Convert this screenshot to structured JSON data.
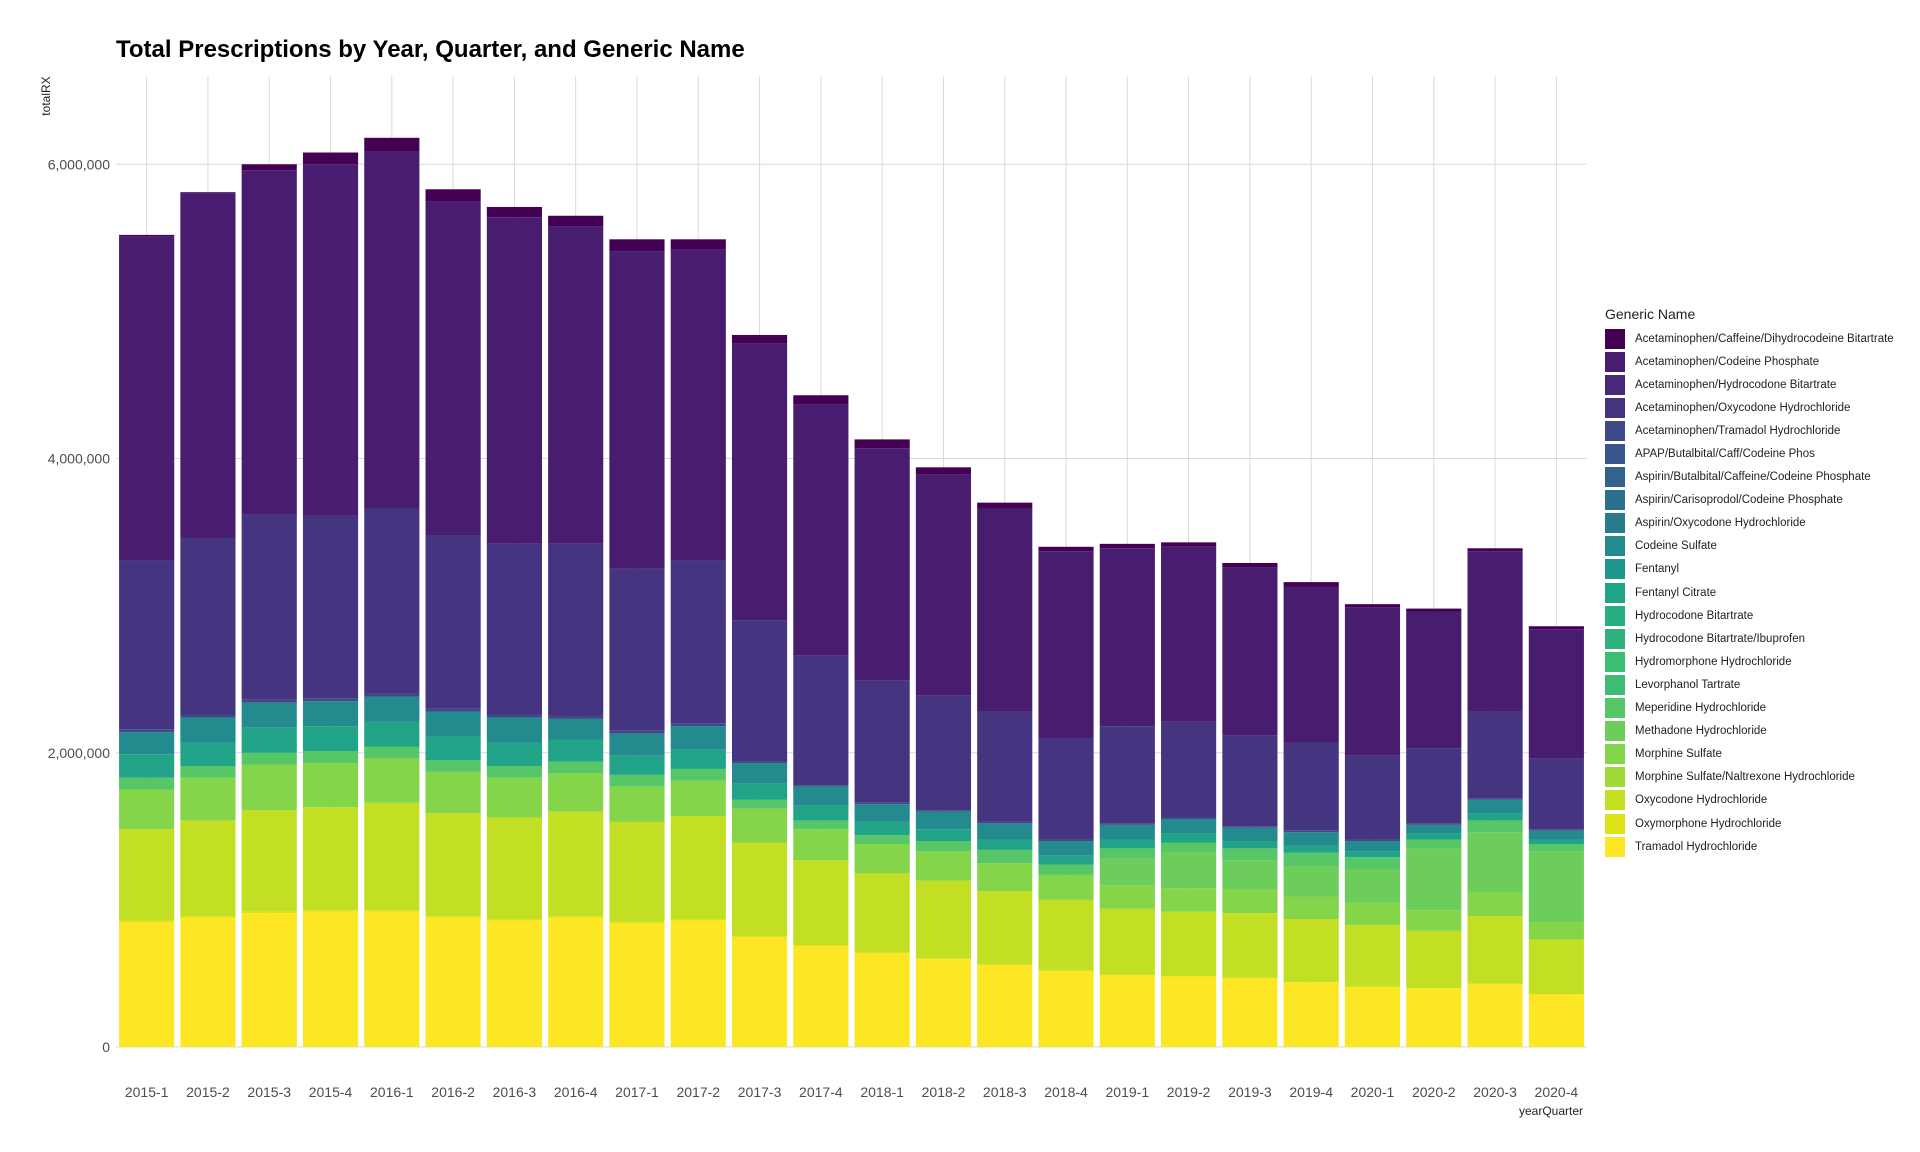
{
  "chart_data": {
    "type": "bar",
    "stacked": true,
    "title": "Total Prescriptions by Year, Quarter, and Generic Name",
    "xlabel": "yearQuarter",
    "ylabel": "totalRX",
    "ylim": [
      0,
      6600000
    ],
    "yticks": [
      0,
      2000000,
      4000000,
      6000000
    ],
    "ytick_labels": [
      "0",
      "2,000,000",
      "4,000,000",
      "6,000,000"
    ],
    "grid": true,
    "legend_title": "Generic Name",
    "legend_position": "right",
    "categories": [
      "2015-1",
      "2015-2",
      "2015-3",
      "2015-4",
      "2016-1",
      "2016-2",
      "2016-3",
      "2016-4",
      "2017-1",
      "2017-2",
      "2017-3",
      "2017-4",
      "2018-1",
      "2018-2",
      "2018-3",
      "2018-4",
      "2019-1",
      "2019-2",
      "2019-3",
      "2019-4",
      "2020-1",
      "2020-2",
      "2020-3",
      "2020-4"
    ],
    "series": [
      {
        "name": "Acetaminophen/Caffeine/Dihydrocodeine Bitartrate",
        "color": "#440154",
        "values": [
          10000,
          10000,
          40000,
          80000,
          90000,
          80000,
          70000,
          70000,
          80000,
          70000,
          60000,
          60000,
          60000,
          50000,
          40000,
          30000,
          30000,
          30000,
          30000,
          30000,
          20000,
          20000,
          20000,
          20000
        ]
      },
      {
        "name": "Acetaminophen/Codeine Phosphate",
        "color": "#481c6e",
        "values": [
          2200000,
          2340000,
          2340000,
          2390000,
          2430000,
          2270000,
          2220000,
          2160000,
          2160000,
          2110000,
          1880000,
          1710000,
          1580000,
          1500000,
          1380000,
          1270000,
          1210000,
          1190000,
          1140000,
          1060000,
          1010000,
          930000,
          1090000,
          880000
        ]
      },
      {
        "name": "Acetaminophen/Hydrocodone Bitartrate",
        "color": "#482878",
        "values": [
          0,
          0,
          0,
          0,
          0,
          0,
          0,
          0,
          0,
          0,
          0,
          0,
          0,
          0,
          0,
          0,
          0,
          0,
          0,
          0,
          0,
          0,
          0,
          0
        ]
      },
      {
        "name": "Acetaminophen/Oxycodone Hydrochloride",
        "color": "#453581",
        "values": [
          1150000,
          1200000,
          1260000,
          1240000,
          1260000,
          1180000,
          1160000,
          1170000,
          1100000,
          1110000,
          960000,
          880000,
          830000,
          780000,
          750000,
          690000,
          660000,
          650000,
          620000,
          600000,
          570000,
          510000,
          590000,
          480000
        ]
      },
      {
        "name": "Acetaminophen/Tramadol Hydrochloride",
        "color": "#3e4989",
        "values": [
          20000,
          20000,
          20000,
          20000,
          20000,
          20000,
          20000,
          20000,
          20000,
          20000,
          10000,
          10000,
          10000,
          10000,
          10000,
          10000,
          10000,
          10000,
          10000,
          10000,
          10000,
          10000,
          10000,
          10000
        ]
      },
      {
        "name": "APAP/Butalbital/Caff/Codeine Phos",
        "color": "#39568c",
        "values": [
          0,
          0,
          0,
          0,
          0,
          0,
          0,
          0,
          0,
          0,
          0,
          0,
          0,
          0,
          0,
          0,
          0,
          0,
          0,
          0,
          0,
          0,
          0,
          0
        ]
      },
      {
        "name": "Aspirin/Butalbital/Caffeine/Codeine Phosphate",
        "color": "#33638d",
        "values": [
          0,
          0,
          0,
          0,
          0,
          0,
          0,
          0,
          0,
          0,
          0,
          0,
          0,
          0,
          0,
          0,
          0,
          0,
          0,
          0,
          0,
          0,
          0,
          0
        ]
      },
      {
        "name": "Aspirin/Carisoprodol/Codeine Phosphate",
        "color": "#2d708e",
        "values": [
          0,
          0,
          0,
          0,
          0,
          0,
          0,
          0,
          0,
          0,
          0,
          0,
          0,
          0,
          0,
          0,
          0,
          0,
          0,
          0,
          0,
          0,
          0,
          0
        ]
      },
      {
        "name": "Aspirin/Oxycodone Hydrochloride",
        "color": "#287c8e",
        "values": [
          0,
          0,
          0,
          0,
          0,
          0,
          0,
          0,
          0,
          0,
          0,
          0,
          0,
          0,
          0,
          0,
          0,
          0,
          0,
          0,
          0,
          0,
          0,
          0
        ]
      },
      {
        "name": "Codeine Sulfate",
        "color": "#238a8d",
        "values": [
          150000,
          170000,
          170000,
          170000,
          170000,
          170000,
          170000,
          140000,
          150000,
          160000,
          140000,
          130000,
          120000,
          120000,
          110000,
          100000,
          100000,
          100000,
          90000,
          90000,
          70000,
          60000,
          90000,
          60000
        ]
      },
      {
        "name": "Fentanyl",
        "color": "#1f968b",
        "values": [
          0,
          0,
          0,
          0,
          0,
          0,
          0,
          0,
          0,
          0,
          0,
          0,
          0,
          0,
          0,
          0,
          0,
          0,
          0,
          0,
          0,
          0,
          0,
          0
        ]
      },
      {
        "name": "Fentanyl Citrate",
        "color": "#20a386",
        "values": [
          160000,
          160000,
          170000,
          170000,
          170000,
          160000,
          160000,
          150000,
          130000,
          130000,
          110000,
          100000,
          90000,
          80000,
          70000,
          60000,
          60000,
          60000,
          50000,
          50000,
          40000,
          40000,
          50000,
          30000
        ]
      },
      {
        "name": "Hydrocodone Bitartrate",
        "color": "#29af7f",
        "values": [
          0,
          0,
          0,
          0,
          0,
          0,
          0,
          0,
          0,
          0,
          0,
          0,
          0,
          0,
          0,
          0,
          0,
          0,
          0,
          0,
          0,
          0,
          0,
          0
        ]
      },
      {
        "name": "Hydrocodone Bitartrate/Ibuprofen",
        "color": "#2db27d",
        "values": [
          0,
          0,
          0,
          0,
          0,
          0,
          0,
          0,
          0,
          0,
          0,
          0,
          0,
          0,
          0,
          0,
          0,
          0,
          0,
          0,
          0,
          0,
          0,
          0
        ]
      },
      {
        "name": "Hydromorphone Hydrochloride",
        "color": "#3dbc74",
        "values": [
          0,
          0,
          0,
          0,
          0,
          0,
          0,
          0,
          0,
          0,
          0,
          0,
          0,
          0,
          0,
          0,
          0,
          0,
          0,
          0,
          0,
          0,
          0,
          0
        ]
      },
      {
        "name": "Levorphanol Tartrate",
        "color": "#3fbc73",
        "values": [
          0,
          0,
          0,
          0,
          0,
          0,
          0,
          0,
          0,
          0,
          0,
          0,
          0,
          0,
          0,
          0,
          0,
          0,
          0,
          0,
          0,
          0,
          0,
          0
        ]
      },
      {
        "name": "Meperidine Hydrochloride",
        "color": "#56c667",
        "values": [
          80000,
          80000,
          80000,
          80000,
          80000,
          80000,
          80000,
          80000,
          80000,
          80000,
          60000,
          60000,
          60000,
          70000,
          90000,
          70000,
          70000,
          70000,
          80000,
          90000,
          80000,
          60000,
          80000,
          50000
        ]
      },
      {
        "name": "Methadone Hydrochloride",
        "color": "#6ccd5a",
        "values": [
          0,
          0,
          0,
          0,
          0,
          0,
          0,
          0,
          0,
          0,
          0,
          0,
          0,
          0,
          0,
          0,
          180000,
          240000,
          200000,
          210000,
          230000,
          420000,
          410000,
          480000
        ]
      },
      {
        "name": "Morphine Sulfate",
        "color": "#85d54a",
        "values": [
          270000,
          290000,
          310000,
          300000,
          300000,
          280000,
          270000,
          260000,
          240000,
          240000,
          230000,
          210000,
          200000,
          200000,
          190000,
          170000,
          160000,
          160000,
          160000,
          150000,
          150000,
          140000,
          160000,
          120000
        ]
      },
      {
        "name": "Morphine Sulfate/Naltrexone Hydrochloride",
        "color": "#a0da39",
        "values": [
          0,
          0,
          0,
          0,
          0,
          0,
          0,
          0,
          0,
          0,
          0,
          0,
          0,
          0,
          0,
          0,
          0,
          0,
          0,
          0,
          0,
          0,
          0,
          0
        ]
      },
      {
        "name": "Oxycodone Hydrochloride",
        "color": "#c2df23",
        "values": [
          620000,
          650000,
          690000,
          700000,
          730000,
          700000,
          690000,
          710000,
          680000,
          700000,
          640000,
          580000,
          540000,
          530000,
          500000,
          480000,
          450000,
          440000,
          440000,
          430000,
          420000,
          390000,
          460000,
          370000
        ]
      },
      {
        "name": "Oxymorphone Hydrochloride",
        "color": "#dde318",
        "values": [
          10000,
          10000,
          10000,
          10000,
          10000,
          10000,
          10000,
          10000,
          10000,
          10000,
          0,
          0,
          0,
          0,
          0,
          0,
          0,
          0,
          0,
          0,
          0,
          0,
          0,
          0
        ]
      },
      {
        "name": "Tramadol Hydrochloride",
        "color": "#fde725",
        "values": [
          850000,
          880000,
          910000,
          920000,
          920000,
          880000,
          860000,
          880000,
          840000,
          860000,
          750000,
          690000,
          640000,
          600000,
          560000,
          520000,
          490000,
          480000,
          470000,
          440000,
          410000,
          400000,
          430000,
          360000
        ]
      }
    ]
  }
}
